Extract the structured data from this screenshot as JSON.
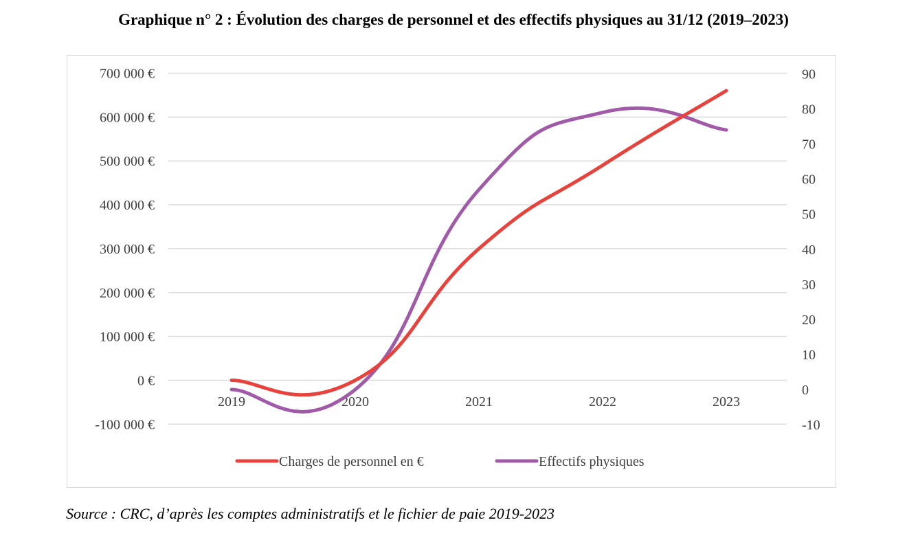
{
  "title": "Graphique n° 2 : Évolution des charges de personnel et des effectifs physiques au 31/12 (2019–2023)",
  "source": "Source : CRC, d’après les comptes administratifs et le fichier de paie 2019-2023",
  "chart_data": {
    "type": "line",
    "categories": [
      "2019",
      "2020",
      "2021",
      "2022",
      "2023"
    ],
    "series": [
      {
        "name": "Charges de personnel en €",
        "axis": "left",
        "color": "#e8423c",
        "values": [
          0,
          0,
          300000,
          490000,
          660000
        ]
      },
      {
        "name": "Effectifs physiques",
        "axis": "right",
        "color": "#a05aa8",
        "values": [
          0,
          0,
          57,
          79,
          74
        ]
      }
    ],
    "y_left": {
      "min": -100000,
      "max": 700000,
      "step": 100000,
      "tick_labels": [
        "-100 000 €",
        "0 €",
        "100 000 €",
        "200 000 €",
        "300 000 €",
        "400 000 €",
        "500 000 €",
        "600 000 €",
        "700 000 €"
      ]
    },
    "y_right": {
      "min": -10,
      "max": 90,
      "step": 10,
      "tick_labels": [
        "-10",
        "0",
        "10",
        "20",
        "30",
        "40",
        "50",
        "60",
        "70",
        "80",
        "90"
      ]
    },
    "grid": true,
    "legend_position": "bottom",
    "smooth": true
  }
}
